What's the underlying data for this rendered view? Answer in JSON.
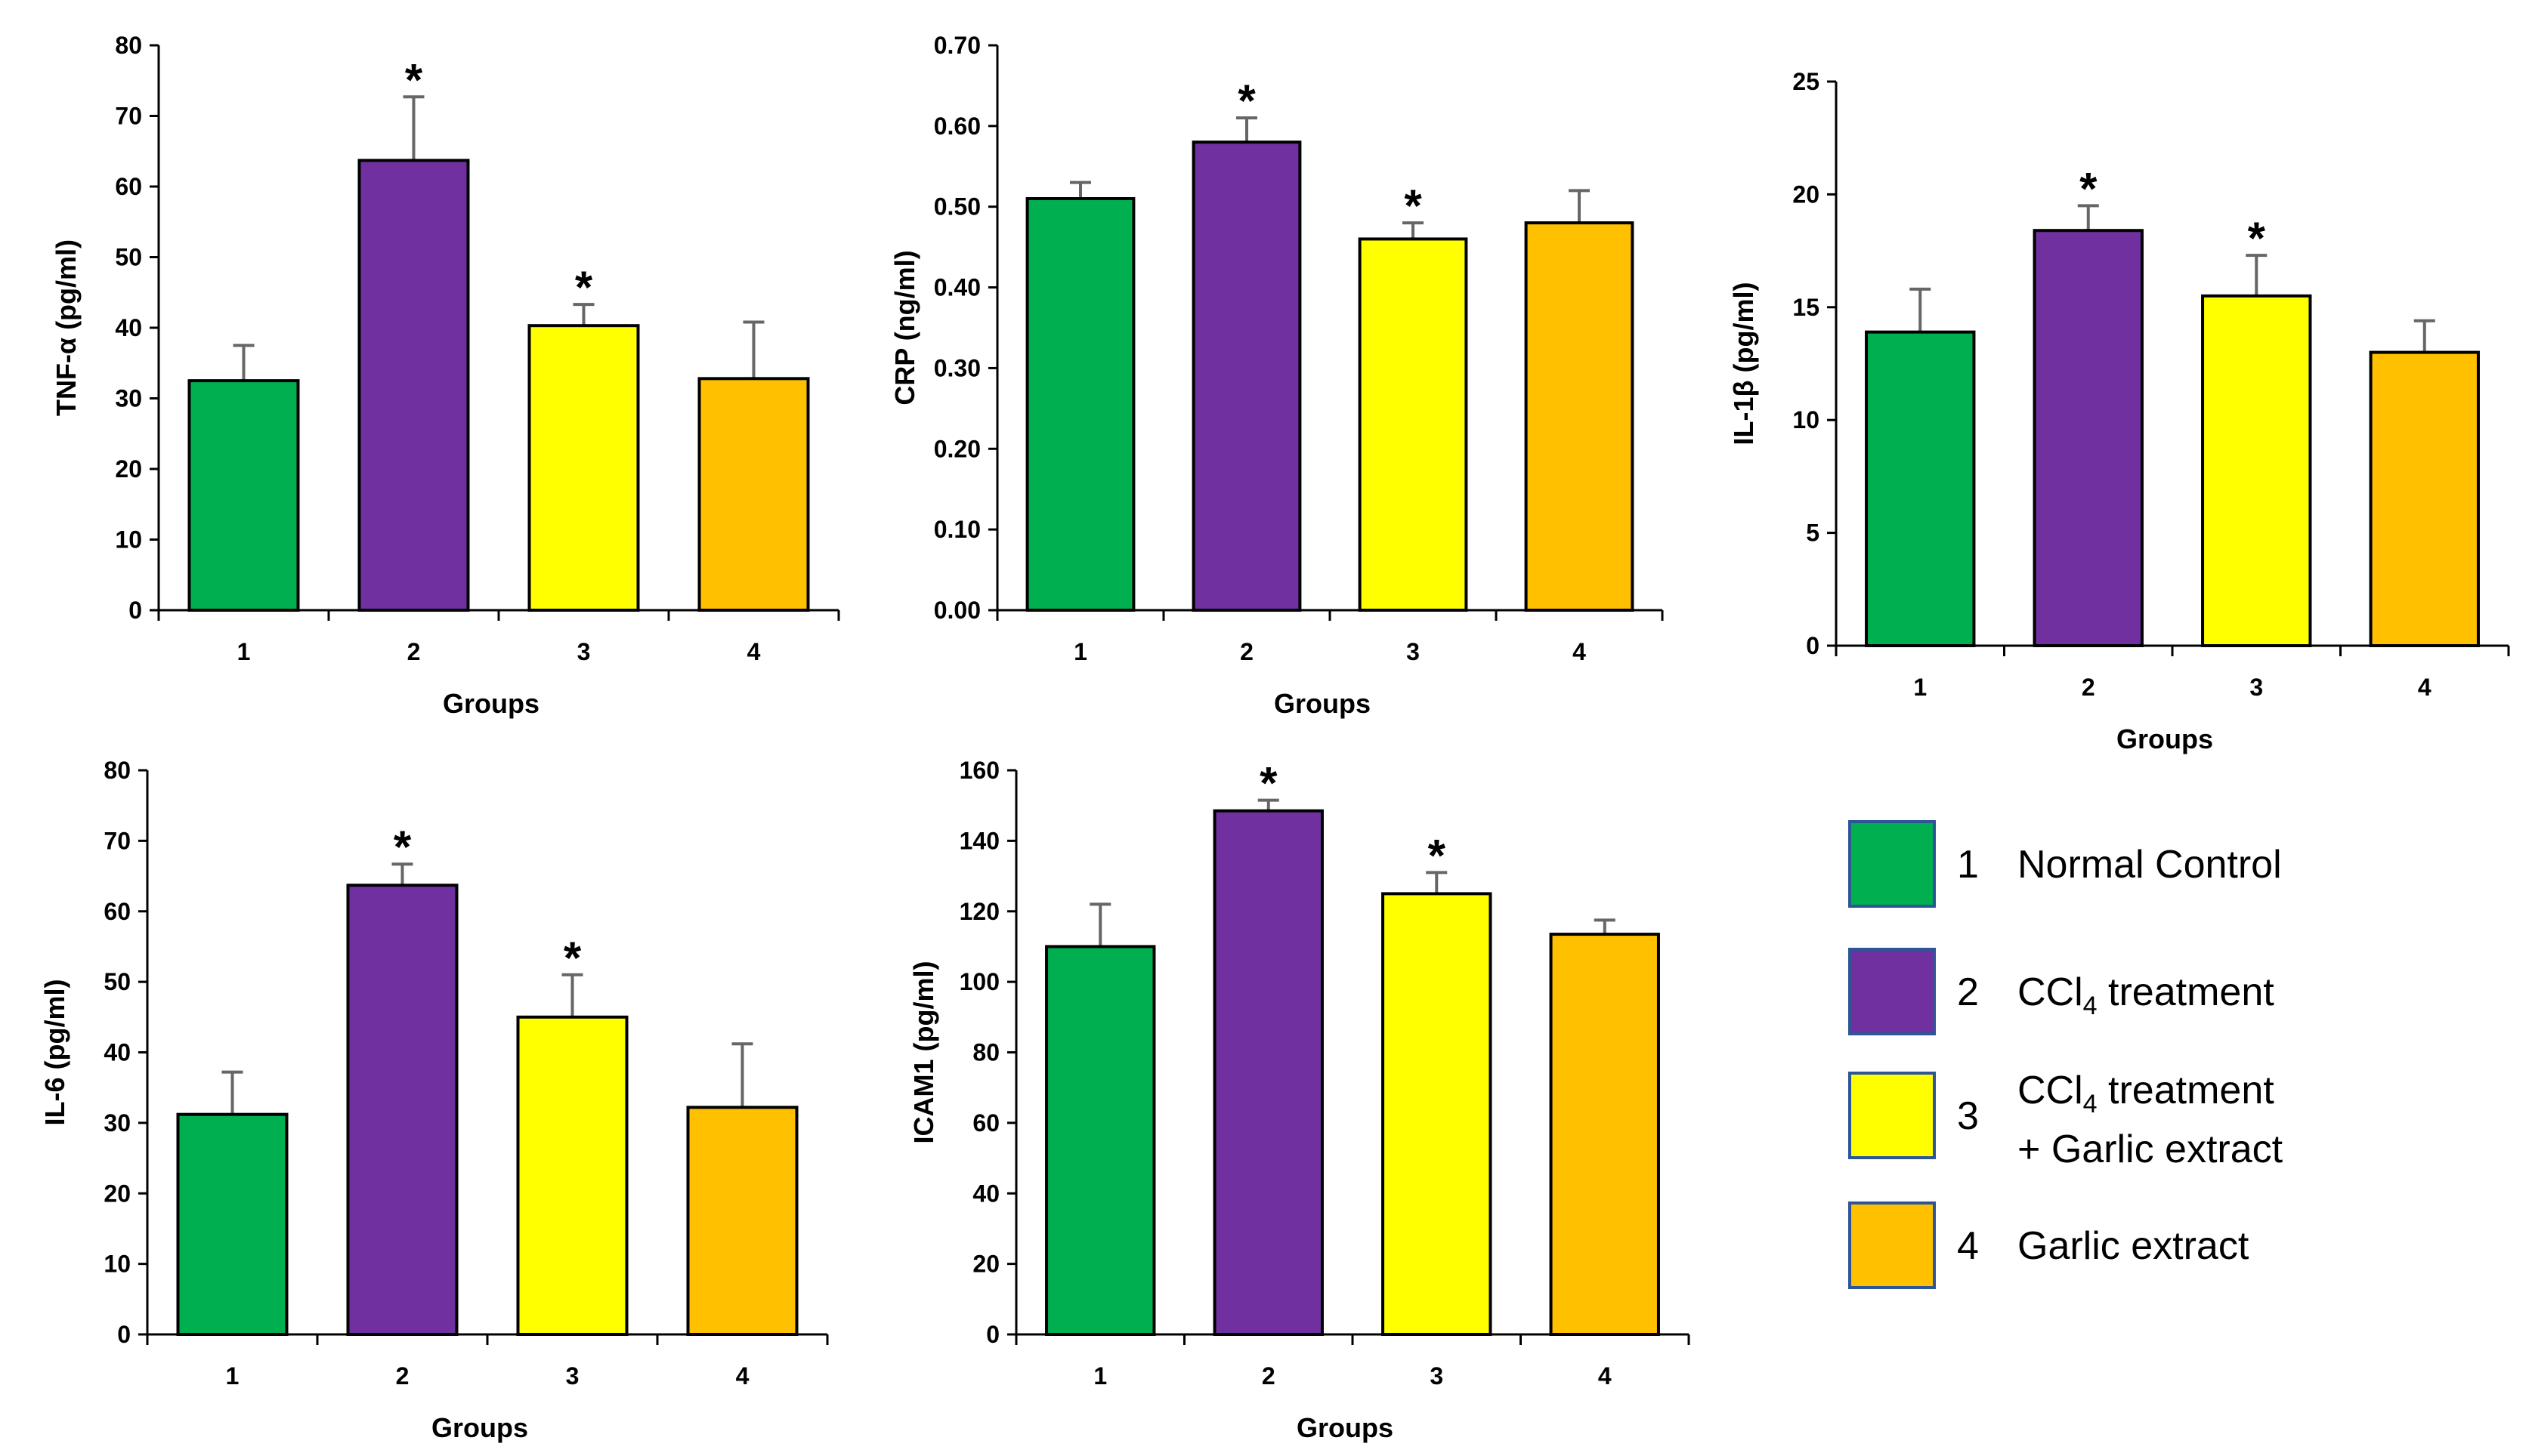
{
  "colors": {
    "group1": "#00b050",
    "group2": "#7030a0",
    "group3": "#ffff00",
    "group4": "#ffc000",
    "legend_border": "#2e5597",
    "error_bar": "#666666"
  },
  "legend": {
    "items": [
      {
        "number": "1",
        "label": "Normal Control",
        "color_key": "group1"
      },
      {
        "number": "2",
        "label": "CCl4 treatment",
        "color_key": "group2",
        "chem": {
          "prefix": "CCl",
          "sub": "4",
          "suffix": " treatment"
        }
      },
      {
        "number": "3",
        "label": "CCl4 treatment + Garlic extract",
        "color_key": "group3",
        "chem": {
          "prefix": "CCl",
          "sub": "4",
          "suffix": " treatment"
        },
        "line2": "+ Garlic extract"
      },
      {
        "number": "4",
        "label": "Garlic extract",
        "color_key": "group4"
      }
    ]
  },
  "chart_data": [
    {
      "id": "tnf",
      "type": "bar",
      "ylabel": "TNF-α (pg/ml)",
      "xlabel": "Groups",
      "categories": [
        "1",
        "2",
        "3",
        "4"
      ],
      "values": [
        32.5,
        63.7,
        40.3,
        32.8
      ],
      "errors": [
        5.0,
        9.0,
        3.0,
        8.0
      ],
      "significant": [
        false,
        true,
        true,
        false
      ],
      "significance_marker": "*",
      "ylim": [
        0,
        80
      ],
      "yticks": [
        0,
        10,
        20,
        30,
        40,
        50,
        60,
        70,
        80
      ],
      "ytick_labels": [
        "0",
        "10",
        "20",
        "30",
        "40",
        "50",
        "60",
        "70",
        "80"
      ]
    },
    {
      "id": "crp",
      "type": "bar",
      "ylabel": "CRP (ng/ml)",
      "xlabel": "Groups",
      "categories": [
        "1",
        "2",
        "3",
        "4"
      ],
      "values": [
        0.51,
        0.58,
        0.46,
        0.48
      ],
      "errors": [
        0.02,
        0.03,
        0.02,
        0.04
      ],
      "significant": [
        false,
        true,
        true,
        false
      ],
      "significance_marker": "*",
      "ylim": [
        0,
        0.7
      ],
      "yticks": [
        0,
        0.1,
        0.2,
        0.3,
        0.4,
        0.5,
        0.6,
        0.7
      ],
      "ytick_labels": [
        "0.00",
        "0.10",
        "0.20",
        "0.30",
        "0.40",
        "0.50",
        "0.60",
        "0.70"
      ]
    },
    {
      "id": "il1b",
      "type": "bar",
      "ylabel": "IL-1β (pg/ml)",
      "xlabel": "Groups",
      "categories": [
        "1",
        "2",
        "3",
        "4"
      ],
      "values": [
        13.9,
        18.4,
        15.5,
        13.0
      ],
      "errors": [
        1.9,
        1.1,
        1.8,
        1.4
      ],
      "significant": [
        false,
        true,
        true,
        false
      ],
      "significance_marker": "*",
      "ylim": [
        0,
        25
      ],
      "yticks": [
        0,
        5,
        10,
        15,
        20,
        25
      ],
      "ytick_labels": [
        "0",
        "5",
        "10",
        "15",
        "20",
        "25"
      ]
    },
    {
      "id": "il6",
      "type": "bar",
      "ylabel": "IL-6 (pg/ml)",
      "xlabel": "Groups",
      "categories": [
        "1",
        "2",
        "3",
        "4"
      ],
      "values": [
        31.2,
        63.7,
        45.0,
        32.2
      ],
      "errors": [
        6.0,
        3.0,
        6.0,
        9.0
      ],
      "significant": [
        false,
        true,
        true,
        false
      ],
      "significance_marker": "*",
      "ylim": [
        0,
        80
      ],
      "yticks": [
        0,
        10,
        20,
        30,
        40,
        50,
        60,
        70,
        80
      ],
      "ytick_labels": [
        "0",
        "10",
        "20",
        "30",
        "40",
        "50",
        "60",
        "70",
        "80"
      ]
    },
    {
      "id": "icam1",
      "type": "bar",
      "ylabel": "ICAM1 (pg/ml)",
      "xlabel": "Groups",
      "categories": [
        "1",
        "2",
        "3",
        "4"
      ],
      "values": [
        110,
        148.5,
        125,
        113.5
      ],
      "errors": [
        12,
        3,
        6,
        4
      ],
      "significant": [
        false,
        true,
        true,
        false
      ],
      "significance_marker": "*",
      "ylim": [
        0,
        160
      ],
      "yticks": [
        0,
        20,
        40,
        60,
        80,
        100,
        120,
        140,
        160
      ],
      "ytick_labels": [
        "0",
        "20",
        "40",
        "60",
        "80",
        "100",
        "120",
        "140",
        "160"
      ]
    }
  ]
}
